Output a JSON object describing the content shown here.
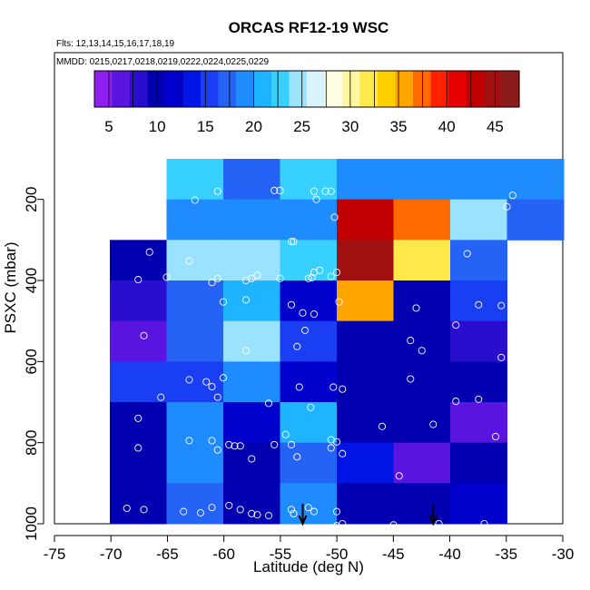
{
  "chart_data": {
    "type": "heatmap",
    "title": "ORCAS RF12-19 WSC",
    "subtitle_flights": "Flts: 12,13,14,15,16,17,18,19",
    "subtitle_dates": "MMDD: 0215,0217,0218,0219,0222,0224,0225,0229",
    "xlabel": "Latitude (deg N)",
    "ylabel": "PSXC (mbar)",
    "xlim": [
      -75,
      -30
    ],
    "ylim": [
      1000,
      100
    ],
    "x_ticks": [
      -75,
      -70,
      -65,
      -60,
      -55,
      -50,
      -45,
      -40,
      -35,
      -30
    ],
    "x_tick_labels": [
      "-75",
      "-70",
      "-65",
      "-60",
      "-55",
      "-50",
      "-45",
      "-40",
      "-35",
      "-30"
    ],
    "y_ticks": [
      200,
      400,
      600,
      800,
      1000
    ],
    "y_tick_labels": [
      "200",
      "400",
      "600",
      "800",
      "1000"
    ],
    "colorbar": {
      "range": [
        3.5,
        47.5
      ],
      "ticks": [
        5,
        10,
        15,
        20,
        25,
        30,
        35,
        40,
        45
      ],
      "tick_labels": [
        "5",
        "10",
        "15",
        "20",
        "25",
        "30",
        "35",
        "40",
        "45"
      ],
      "colors": [
        "#8f1ff0",
        "#5a14e0",
        "#2a0ed0",
        "#0000b0",
        "#0000cc",
        "#0014e6",
        "#1a3ef2",
        "#2463f5",
        "#1e8bff",
        "#1eb4ff",
        "#38d0ff",
        "#9be2ff",
        "#d8f5ff",
        "#ffffe6",
        "#fff6a0",
        "#ffe84a",
        "#ffd000",
        "#ffa500",
        "#ff6a00",
        "#ff2000",
        "#e60000",
        "#c00000",
        "#a01010",
        "#8b1a1a"
      ]
    },
    "x_bins": [
      -70,
      -65,
      -60,
      -55,
      -50,
      -45,
      -40,
      -35,
      -30
    ],
    "y_bins": [
      100,
      200,
      300,
      400,
      500,
      600,
      700,
      800,
      900,
      1000
    ],
    "values": [
      [
        null,
        23.5,
        17.5,
        22.5,
        18.5,
        18.5,
        18.5,
        19.5
      ],
      [
        null,
        18.5,
        18.5,
        18.5,
        43.5,
        36.5,
        24.5,
        17.5
      ],
      [
        9.5,
        24.5,
        24.5,
        23.5,
        44.5,
        32.5,
        17.5,
        null
      ],
      [
        8.5,
        16.5,
        21.5,
        12.5,
        36.0,
        9.5,
        15.5,
        null
      ],
      [
        5.5,
        16.5,
        24.0,
        14.5,
        10.0,
        10.0,
        7.5,
        null
      ],
      [
        14.5,
        14.5,
        18.5,
        12.5,
        10.0,
        10.0,
        10.0,
        null
      ],
      [
        9.5,
        18.5,
        11.5,
        20.5,
        10.0,
        9.5,
        6.0,
        null
      ],
      [
        10.0,
        18.5,
        10.0,
        17.5,
        13.0,
        7.0,
        9.0,
        null
      ],
      [
        10.0,
        17.5,
        10.5,
        19.5,
        10.5,
        9.0,
        12.0,
        null
      ]
    ],
    "points": [
      [
        -62.5,
        202
      ],
      [
        -60.5,
        180
      ],
      [
        -55.5,
        178
      ],
      [
        -55,
        178
      ],
      [
        -52,
        180
      ],
      [
        -51.8,
        200
      ],
      [
        -51,
        180
      ],
      [
        -50.5,
        180
      ],
      [
        -34.5,
        190
      ],
      [
        -35,
        218
      ],
      [
        -50.2,
        244
      ],
      [
        -66.5,
        330
      ],
      [
        -67.5,
        398
      ],
      [
        -65,
        392
      ],
      [
        -63,
        352
      ],
      [
        -61,
        405
      ],
      [
        -60.5,
        395
      ],
      [
        -58,
        400
      ],
      [
        -57.5,
        395
      ],
      [
        -57,
        387
      ],
      [
        -55,
        395
      ],
      [
        -54,
        304
      ],
      [
        -53.8,
        304
      ],
      [
        -52,
        380
      ],
      [
        -52.2,
        393
      ],
      [
        -51.5,
        375
      ],
      [
        -52.5,
        395
      ],
      [
        -50.5,
        390
      ],
      [
        -50,
        380
      ],
      [
        -38.5,
        334
      ],
      [
        -60,
        453
      ],
      [
        -58,
        448
      ],
      [
        -54,
        460
      ],
      [
        -53,
        480
      ],
      [
        -52,
        483
      ],
      [
        -52.8,
        523
      ],
      [
        -49.8,
        453
      ],
      [
        -43,
        468
      ],
      [
        -37.5,
        460
      ],
      [
        -39.5,
        510
      ],
      [
        -35.5,
        462
      ],
      [
        -67,
        536
      ],
      [
        -58,
        573
      ],
      [
        -53.5,
        563
      ],
      [
        -43.5,
        548
      ],
      [
        -42.5,
        573
      ],
      [
        -35.5,
        590
      ],
      [
        -65.5,
        688
      ],
      [
        -63,
        645
      ],
      [
        -61.5,
        650
      ],
      [
        -61,
        662
      ],
      [
        -60.5,
        688
      ],
      [
        -60,
        640
      ],
      [
        -56,
        703
      ],
      [
        -53.3,
        663
      ],
      [
        -52.3,
        713
      ],
      [
        -50.3,
        663
      ],
      [
        -49.5,
        668
      ],
      [
        -43.5,
        643
      ],
      [
        -39.5,
        698
      ],
      [
        -37.5,
        693
      ],
      [
        -67.5,
        740
      ],
      [
        -67.5,
        813
      ],
      [
        -63,
        795
      ],
      [
        -61,
        795
      ],
      [
        -60.5,
        818
      ],
      [
        -59.5,
        805
      ],
      [
        -59,
        808
      ],
      [
        -58.5,
        808
      ],
      [
        -57.5,
        840
      ],
      [
        -55.5,
        805
      ],
      [
        -54,
        805
      ],
      [
        -54.5,
        780
      ],
      [
        -50.5,
        793
      ],
      [
        -50,
        798
      ],
      [
        -50.5,
        813
      ],
      [
        -49.5,
        827
      ],
      [
        -46,
        760
      ],
      [
        -41.5,
        755
      ],
      [
        -36,
        785
      ],
      [
        -53.5,
        835
      ],
      [
        -44.5,
        882
      ],
      [
        -68.5,
        962
      ],
      [
        -67,
        965
      ],
      [
        -63.5,
        970
      ],
      [
        -62,
        973
      ],
      [
        -61,
        960
      ],
      [
        -59.5,
        955
      ],
      [
        -58.5,
        965
      ],
      [
        -57.5,
        975
      ],
      [
        -57,
        978
      ],
      [
        -56,
        980
      ],
      [
        -54,
        965
      ],
      [
        -53.8,
        975
      ],
      [
        -52.5,
        960
      ],
      [
        -52,
        970
      ],
      [
        -50,
        970
      ],
      [
        -49.5,
        1000
      ],
      [
        -50,
        1005
      ],
      [
        -45,
        1003
      ],
      [
        -41,
        1000
      ],
      [
        -37,
        1000
      ]
    ],
    "arrows_x": [
      -53,
      -41.5
    ]
  }
}
